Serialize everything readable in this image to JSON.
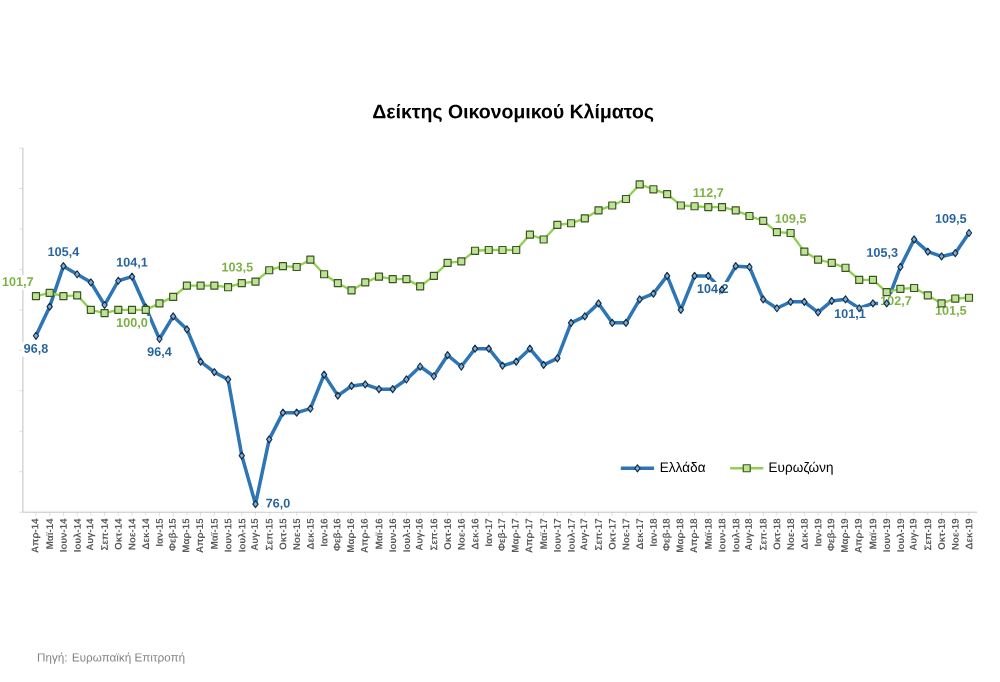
{
  "chart_data": {
    "type": "line",
    "title": "Δείκτης Οικονομικού Κλίματος",
    "categories": [
      "Απρ-14",
      "Μαϊ-14",
      "Ιουν-14",
      "Ιουλ-14",
      "Αυγ-14",
      "Σεπ-14",
      "Οκτ-14",
      "Νοε-14",
      "Δεκ-14",
      "Ιαν-15",
      "Φεβ-15",
      "Μαρ-15",
      "Απρ-15",
      "Μαϊ-15",
      "Ιουν-15",
      "Ιουλ-15",
      "Αυγ-15",
      "Σεπ-15",
      "Οκτ-15",
      "Νοε-15",
      "Δεκ-15",
      "Ιαν-16",
      "Φεβ-16",
      "Μαρ-16",
      "Απρ-16",
      "Μαϊ-16",
      "Ιουν-16",
      "Ιουλ-16",
      "Αυγ-16",
      "Σεπ-16",
      "Οκτ-16",
      "Νοε-16",
      "Δεκ-16",
      "Ιαν-17",
      "Φεβ-17",
      "Μαρ-17",
      "Απρ-17",
      "Μαϊ-17",
      "Ιουν-17",
      "Ιουλ-17",
      "Αυγ-17",
      "Σεπ-17",
      "Οκτ-17",
      "Νοε-17",
      "Δεκ-17",
      "Ιαν-18",
      "Φεβ-18",
      "Μαρ-18",
      "Απρ-18",
      "Μαϊ-18",
      "Ιουν-18",
      "Ιουλ-18",
      "Αυγ-18",
      "Σεπ-18",
      "Οκτ-18",
      "Νοε-18",
      "Δεκ-18",
      "Ιαν-19",
      "Φεβ-19",
      "Μαρ-19",
      "Απρ-19",
      "Μαϊ-19",
      "Ιουν-19",
      "Ιουλ-19",
      "Αυγ-19",
      "Σεπ-19",
      "Οκτ-19",
      "Νοε-19",
      "Δεκ-19"
    ],
    "series": [
      {
        "name": "Ελλάδα",
        "color": "#2e75b6",
        "marker": "diamond",
        "values": [
          96.8,
          100.4,
          105.4,
          104.4,
          103.4,
          100.6,
          103.6,
          104.1,
          100.3,
          96.4,
          99.2,
          97.6,
          93.6,
          92.3,
          91.4,
          82.0,
          76.0,
          84.0,
          87.3,
          87.3,
          87.8,
          92.0,
          89.4,
          90.6,
          90.8,
          90.2,
          90.2,
          91.4,
          93.0,
          91.8,
          94.4,
          93.0,
          95.2,
          95.2,
          93.1,
          93.6,
          95.2,
          93.2,
          94.0,
          98.4,
          99.2,
          100.8,
          98.4,
          98.4,
          101.3,
          102.0,
          104.2,
          100.0,
          104.2,
          104.2,
          102.5,
          105.4,
          105.3,
          101.3,
          100.2,
          101.0,
          101.0,
          99.7,
          101.1,
          101.3,
          100.2,
          100.8,
          100.8,
          105.3,
          108.7,
          107.2,
          106.6,
          107.0,
          109.5
        ],
        "value_labels": [
          "96,8",
          null,
          "105,4",
          null,
          null,
          null,
          null,
          "104,1",
          null,
          "96,4",
          null,
          null,
          null,
          null,
          null,
          null,
          "76,0",
          null,
          null,
          null,
          null,
          null,
          null,
          null,
          null,
          null,
          null,
          null,
          null,
          null,
          null,
          null,
          null,
          null,
          null,
          null,
          null,
          null,
          null,
          null,
          null,
          null,
          null,
          null,
          null,
          null,
          null,
          null,
          "104,2",
          null,
          null,
          null,
          null,
          null,
          null,
          null,
          null,
          null,
          "101,1",
          null,
          null,
          null,
          null,
          "105,3",
          null,
          null,
          null,
          null,
          "109,5"
        ]
      },
      {
        "name": "Ευρωζώνη",
        "color": "#92d050",
        "marker": "square",
        "values": [
          101.7,
          102.1,
          101.7,
          101.8,
          100.0,
          99.6,
          100.0,
          100.0,
          100.0,
          100.8,
          101.6,
          103.0,
          103.0,
          103.0,
          102.8,
          103.3,
          103.5,
          104.9,
          105.4,
          105.3,
          106.2,
          104.4,
          103.3,
          102.4,
          103.4,
          104.1,
          103.8,
          103.8,
          102.9,
          104.2,
          105.8,
          106.0,
          107.3,
          107.4,
          107.4,
          107.4,
          109.3,
          108.7,
          110.5,
          110.7,
          111.3,
          112.3,
          112.9,
          113.7,
          115.5,
          114.9,
          114.3,
          112.9,
          112.8,
          112.7,
          112.7,
          112.3,
          111.6,
          111.0,
          109.6,
          109.5,
          107.2,
          106.2,
          105.8,
          105.2,
          103.7,
          103.7,
          102.2,
          102.6,
          102.7,
          101.8,
          100.8,
          101.4,
          101.5
        ],
        "value_labels": [
          "101,7",
          null,
          null,
          null,
          null,
          null,
          null,
          "100,0",
          null,
          null,
          null,
          null,
          null,
          null,
          null,
          null,
          "103,5",
          null,
          null,
          null,
          null,
          null,
          null,
          null,
          null,
          null,
          null,
          null,
          null,
          null,
          null,
          null,
          null,
          null,
          null,
          null,
          null,
          null,
          null,
          null,
          null,
          null,
          null,
          null,
          null,
          null,
          null,
          null,
          null,
          "112,7",
          null,
          null,
          null,
          null,
          null,
          "109,5",
          null,
          null,
          null,
          null,
          null,
          null,
          null,
          null,
          "102,7",
          null,
          null,
          null,
          "101,5"
        ]
      }
    ],
    "ylim": [
      75,
      120
    ],
    "yticks": [
      {
        "value": 75,
        "label": null
      },
      {
        "value": 80,
        "label": null
      },
      {
        "value": 85,
        "label": null
      },
      {
        "value": 90,
        "label": null
      },
      {
        "value": 95,
        "label": null
      },
      {
        "value": 100,
        "label": null
      },
      {
        "value": 105,
        "label": null
      },
      {
        "value": 110,
        "label": null
      },
      {
        "value": 115,
        "label": null
      },
      {
        "value": 120,
        "label": null
      }
    ],
    "tick_labels": "x",
    "legend": "bottom right",
    "annotations": [
      "Πηγή: Ευρωπαϊκή Επιτροπή"
    ]
  }
}
